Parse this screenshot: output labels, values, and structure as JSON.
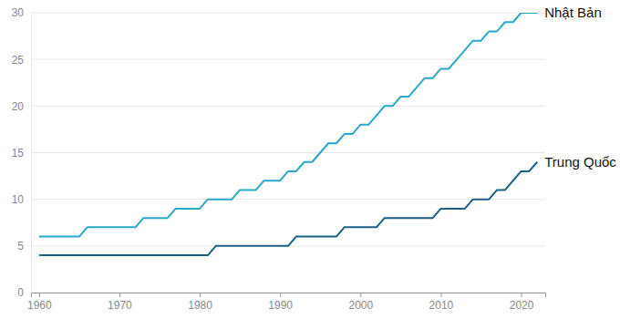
{
  "chart_data": {
    "type": "line",
    "x": [
      1960,
      1961,
      1962,
      1963,
      1964,
      1965,
      1966,
      1967,
      1968,
      1969,
      1970,
      1971,
      1972,
      1973,
      1974,
      1975,
      1976,
      1977,
      1978,
      1979,
      1980,
      1981,
      1982,
      1983,
      1984,
      1985,
      1986,
      1987,
      1988,
      1989,
      1990,
      1991,
      1992,
      1993,
      1994,
      1995,
      1996,
      1997,
      1998,
      1999,
      2000,
      2001,
      2002,
      2003,
      2004,
      2005,
      2006,
      2007,
      2008,
      2009,
      2010,
      2011,
      2012,
      2013,
      2014,
      2015,
      2016,
      2017,
      2018,
      2019,
      2020,
      2021,
      2022
    ],
    "series": [
      {
        "name": "Nhật Bản",
        "color": "#2aa7c9",
        "values": [
          6,
          6,
          6,
          6,
          6,
          6,
          7,
          7,
          7,
          7,
          7,
          7,
          7,
          8,
          8,
          8,
          8,
          9,
          9,
          9,
          9,
          10,
          10,
          10,
          10,
          11,
          11,
          11,
          12,
          12,
          12,
          13,
          13,
          14,
          14,
          15,
          16,
          16,
          17,
          17,
          18,
          18,
          19,
          20,
          20,
          21,
          21,
          22,
          23,
          23,
          24,
          24,
          25,
          26,
          27,
          27,
          28,
          28,
          29,
          29,
          30,
          30,
          30
        ]
      },
      {
        "name": "Trung Quốc",
        "color": "#1b5e86",
        "values": [
          4,
          4,
          4,
          4,
          4,
          4,
          4,
          4,
          4,
          4,
          4,
          4,
          4,
          4,
          4,
          4,
          4,
          4,
          4,
          4,
          4,
          4,
          5,
          5,
          5,
          5,
          5,
          5,
          5,
          5,
          5,
          5,
          6,
          6,
          6,
          6,
          6,
          6,
          7,
          7,
          7,
          7,
          7,
          8,
          8,
          8,
          8,
          8,
          8,
          8,
          9,
          9,
          9,
          9,
          10,
          10,
          10,
          11,
          11,
          12,
          13,
          13,
          14
        ]
      }
    ],
    "xlim": [
      1959,
      2023
    ],
    "ylim": [
      0,
      30
    ],
    "xticks": [
      1960,
      1970,
      1980,
      1990,
      2000,
      2010,
      2020
    ],
    "yticks": [
      0,
      5,
      10,
      15,
      20,
      25,
      30
    ],
    "grid": true
  }
}
